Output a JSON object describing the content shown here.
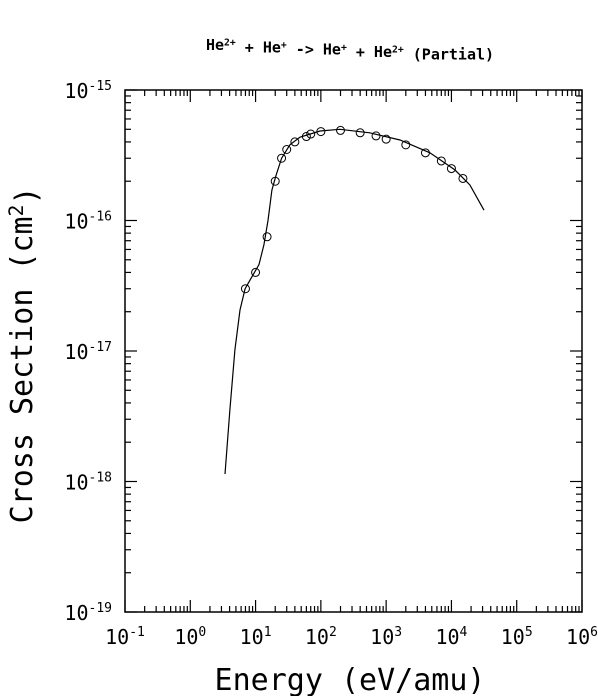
{
  "chart_data": {
    "type": "scatter",
    "log_x": true,
    "log_y": true,
    "title": [
      {
        "text": "He"
      },
      {
        "text": "2+",
        "sup": true
      },
      {
        "text": " + He"
      },
      {
        "text": "+",
        "sup": true
      },
      {
        "text": " -> He"
      },
      {
        "text": "+",
        "sup": true
      },
      {
        "text": " + He"
      },
      {
        "text": "2+",
        "sup": true
      },
      {
        "text": " (Partial)"
      }
    ],
    "x_label": [
      {
        "text": "Energy (eV/amu)"
      }
    ],
    "y_label": [
      {
        "text": "Cross Section (cm"
      },
      {
        "text": "2",
        "sup": true
      },
      {
        "text": ")"
      }
    ],
    "xlim": [
      0.1,
      1000000
    ],
    "ylim": [
      1e-19,
      1e-15
    ],
    "xticks": [
      {
        "value": 0.1,
        "label": {
          "base": "10",
          "exponent": "-1"
        }
      },
      {
        "value": 1,
        "label": {
          "base": "10",
          "exponent": "0"
        }
      },
      {
        "value": 10,
        "label": {
          "base": "10",
          "exponent": "1"
        }
      },
      {
        "value": 100,
        "label": {
          "base": "10",
          "exponent": "2"
        }
      },
      {
        "value": 1000,
        "label": {
          "base": "10",
          "exponent": "3"
        }
      },
      {
        "value": 10000,
        "label": {
          "base": "10",
          "exponent": "4"
        }
      },
      {
        "value": 100000,
        "label": {
          "base": "10",
          "exponent": "5"
        }
      },
      {
        "value": 1000000,
        "label": {
          "base": "10",
          "exponent": "6"
        }
      }
    ],
    "yticks": [
      {
        "value": 1e-19,
        "label": {
          "base": "10",
          "exponent": "-19"
        }
      },
      {
        "value": 1e-18,
        "label": {
          "base": "10",
          "exponent": "-18"
        }
      },
      {
        "value": 1e-17,
        "label": {
          "base": "10",
          "exponent": "-17"
        }
      },
      {
        "value": 1e-16,
        "label": {
          "base": "10",
          "exponent": "-16"
        }
      },
      {
        "value": 1e-15,
        "label": {
          "base": "10",
          "exponent": "-15"
        }
      }
    ],
    "fit": {
      "color": "#000000",
      "x": [
        3.4,
        4.05,
        4.83,
        5.77,
        6.9,
        8.8,
        11.3,
        13.4,
        15.5,
        17.8,
        20.5,
        25,
        33.6,
        47.9,
        97,
        196,
        560,
        1630,
        4680,
        11300,
        19200,
        31500
      ],
      "values": [
        1.14e-18,
        3.55e-18,
        1.02e-17,
        2.06e-17,
        3e-17,
        3.7e-17,
        4.6e-17,
        6.5e-17,
        1e-16,
        1.71e-16,
        2.2e-16,
        3e-16,
        3.8e-16,
        4.35e-16,
        4.85e-16,
        5e-16,
        4.7e-16,
        4.14e-16,
        3.3e-16,
        2.44e-16,
        1.87e-16,
        1.2e-16
      ]
    },
    "points": {
      "color": "#000000",
      "x": [
        7,
        10,
        15,
        20,
        25,
        30,
        40,
        60,
        70,
        100,
        200,
        400,
        700,
        1000,
        2000,
        4000,
        7000,
        10000,
        15000
      ],
      "values": [
        3e-17,
        4e-17,
        7.5e-17,
        2e-16,
        3e-16,
        3.5e-16,
        4e-16,
        4.4e-16,
        4.6e-16,
        4.8e-16,
        4.9e-16,
        4.7e-16,
        4.45e-16,
        4.2e-16,
        3.8e-16,
        3.3e-16,
        2.86e-16,
        2.5e-16,
        2.1e-16
      ]
    }
  }
}
